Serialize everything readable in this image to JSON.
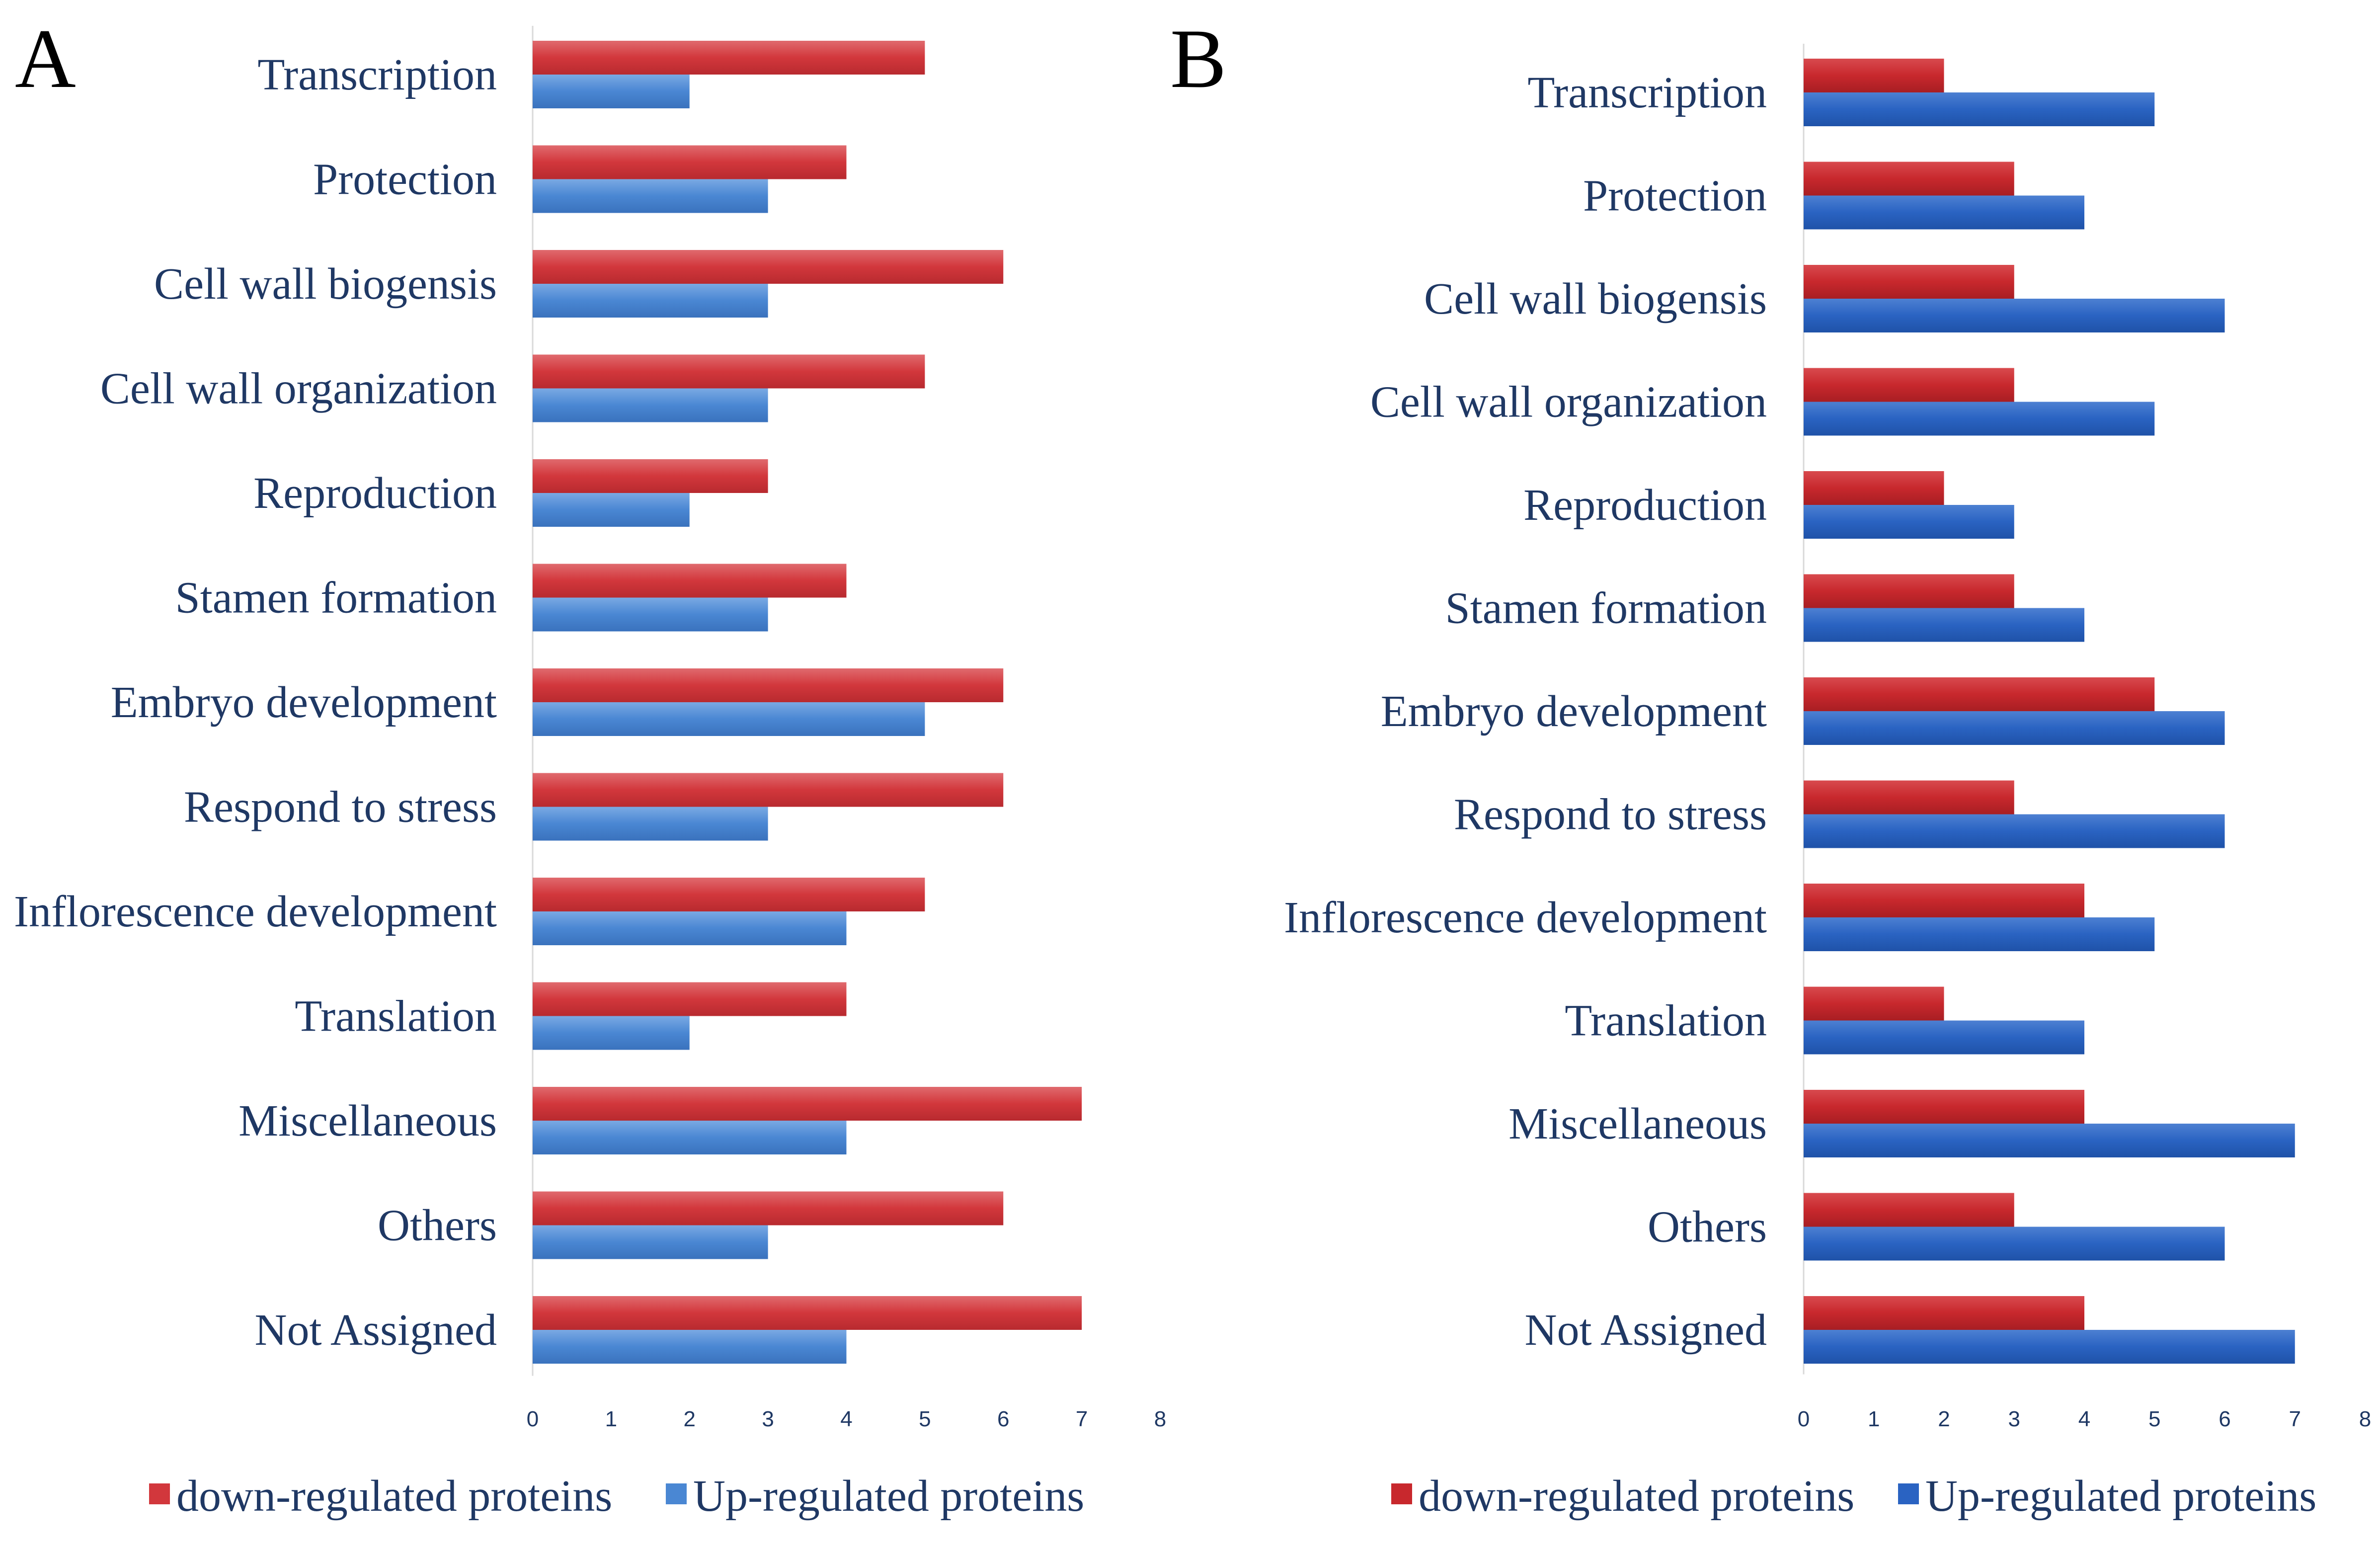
{
  "chart_data": [
    {
      "panel": "A",
      "type": "bar",
      "orientation": "horizontal",
      "categories": [
        "Transcription",
        "Protection",
        "Cell wall biogensis",
        "Cell wall organization",
        "Reproduction",
        "Stamen formation",
        "Embryo development",
        "Respond to stress",
        "Inflorescence development",
        "Translation",
        "Miscellaneous",
        "Others",
        "Not Assigned"
      ],
      "series": [
        {
          "name": "down-regulated proteins",
          "color": "#d2373c",
          "values": [
            5,
            4,
            6,
            5,
            3,
            4,
            6,
            6,
            5,
            4,
            7,
            6,
            7
          ]
        },
        {
          "name": "Up-regulated proteins",
          "color": "#4a87d3",
          "values": [
            2,
            3,
            3,
            3,
            2,
            3,
            5,
            3,
            4,
            2,
            4,
            3,
            4
          ]
        }
      ],
      "xticks": [
        "0",
        "1",
        "2",
        "3",
        "4",
        "5",
        "6",
        "7",
        "8"
      ],
      "xlim": [
        0,
        8
      ],
      "legend_position": "bottom"
    },
    {
      "panel": "B",
      "type": "bar",
      "orientation": "horizontal",
      "categories": [
        "Transcription",
        "Protection",
        "Cell wall biogensis",
        "Cell wall organization",
        "Reproduction",
        "Stamen formation",
        "Embryo development",
        "Respond to stress",
        "Inflorescence development",
        "Translation",
        "Miscellaneous",
        "Others",
        "Not Assigned"
      ],
      "series": [
        {
          "name": "down-regulated proteins",
          "color": "#c8282d",
          "values": [
            2,
            3,
            3,
            3,
            2,
            3,
            5,
            3,
            4,
            2,
            4,
            3,
            4
          ]
        },
        {
          "name": "Up-regulated proteins",
          "color": "#2a63c2",
          "values": [
            5,
            4,
            6,
            5,
            3,
            4,
            6,
            6,
            5,
            4,
            7,
            6,
            7
          ]
        }
      ],
      "xticks": [
        "0",
        "1",
        "2",
        "3",
        "4",
        "5",
        "6",
        "7",
        "8"
      ],
      "xlim": [
        0,
        8
      ],
      "legend_position": "bottom"
    }
  ]
}
